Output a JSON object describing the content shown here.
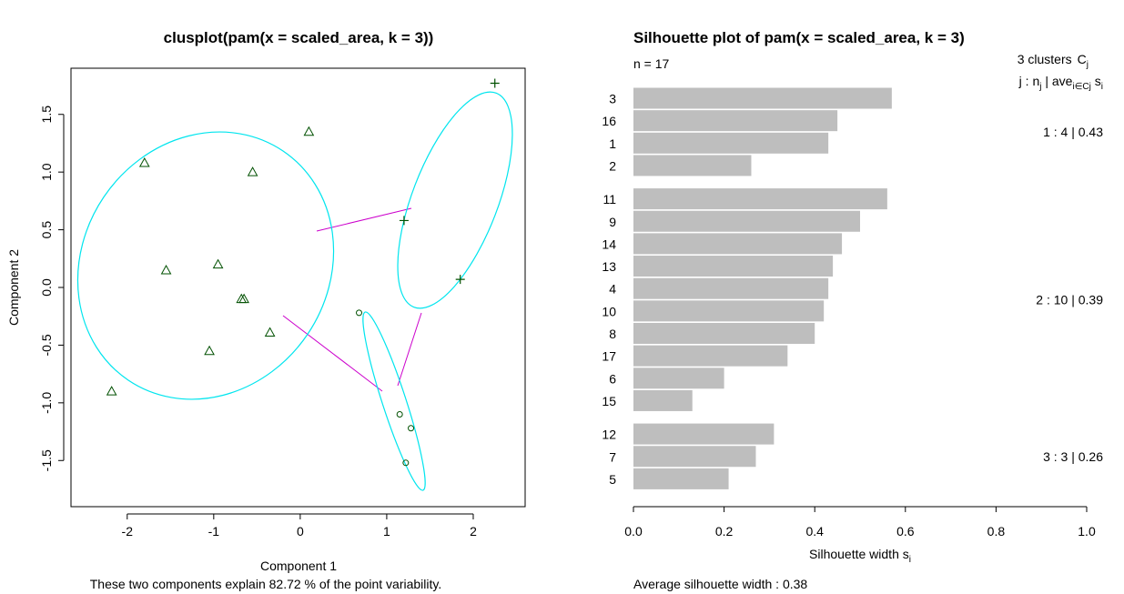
{
  "chart_data": [
    {
      "type": "scatter",
      "title": "clusplot(pam(x = scaled_area, k = 3))",
      "xlabel": "Component 1",
      "ylabel": "Component 2",
      "subtitle": "These two components explain 82.72 % of the point variability.",
      "xlim": [
        -2.65,
        2.6
      ],
      "ylim": [
        -1.9,
        1.9
      ],
      "xticks": [
        "-2",
        "-1",
        "0",
        "1",
        "2"
      ],
      "yticks": [
        "-1.5",
        "-1.0",
        "-0.5",
        "0.0",
        "0.5",
        "1.0",
        "1.5"
      ],
      "grid": false,
      "colors": {
        "ellipse": "#00e5ee",
        "link": "#cc00cc",
        "points": "#005000"
      },
      "clusters": [
        {
          "symbol": "triangle",
          "points": [
            [
              -1.8,
              1.08
            ],
            [
              0.1,
              1.35
            ],
            [
              -0.55,
              1.0
            ],
            [
              -0.95,
              0.2
            ],
            [
              -1.55,
              0.15
            ],
            [
              -0.68,
              -0.1
            ],
            [
              -0.65,
              -0.1
            ],
            [
              -1.05,
              -0.55
            ],
            [
              -0.35,
              -0.39
            ],
            [
              -2.18,
              -0.9
            ]
          ]
        },
        {
          "symbol": "plus",
          "points": [
            [
              2.25,
              1.77
            ],
            [
              1.2,
              0.58
            ],
            [
              1.85,
              0.07
            ]
          ]
        },
        {
          "symbol": "circle",
          "points": [
            [
              0.68,
              -0.22
            ],
            [
              1.15,
              -1.1
            ],
            [
              1.28,
              -1.22
            ],
            [
              1.22,
              -1.52
            ]
          ]
        }
      ]
    },
    {
      "type": "bar",
      "orientation": "horizontal",
      "title": "Silhouette plot of pam(x = scaled_area, k = 3)",
      "n_label": "n = 17",
      "header_k": "3  clusters",
      "header_c": "C",
      "header_c_sub": "j",
      "header_j": "j :  n",
      "header_j_sub": "j",
      "header_ave": " | ave",
      "header_ave_sub": "i∈Cj",
      "header_s": "  s",
      "header_s_sub": "i",
      "xlabel": "Silhouette width s",
      "xlabel_sub": "i",
      "xlim": [
        0,
        1
      ],
      "xticks": [
        "0.0",
        "0.2",
        "0.4",
        "0.6",
        "0.8",
        "1.0"
      ],
      "bar_color": "#bebebe",
      "footer": "Average silhouette width :  0.38",
      "clusters": [
        {
          "summary": "1 :   4  |  0.43",
          "bars": [
            {
              "label": "3",
              "value": 0.57
            },
            {
              "label": "16",
              "value": 0.45
            },
            {
              "label": "1",
              "value": 0.43
            },
            {
              "label": "2",
              "value": 0.26
            }
          ]
        },
        {
          "summary": "2 :   10  |  0.39",
          "bars": [
            {
              "label": "11",
              "value": 0.56
            },
            {
              "label": "9",
              "value": 0.5
            },
            {
              "label": "14",
              "value": 0.46
            },
            {
              "label": "13",
              "value": 0.44
            },
            {
              "label": "4",
              "value": 0.43
            },
            {
              "label": "10",
              "value": 0.42
            },
            {
              "label": "8",
              "value": 0.4
            },
            {
              "label": "17",
              "value": 0.34
            },
            {
              "label": "6",
              "value": 0.2
            },
            {
              "label": "15",
              "value": 0.13
            }
          ]
        },
        {
          "summary": "3 :   3  |  0.26",
          "bars": [
            {
              "label": "12",
              "value": 0.31
            },
            {
              "label": "7",
              "value": 0.27
            },
            {
              "label": "5",
              "value": 0.21
            }
          ]
        }
      ]
    }
  ]
}
